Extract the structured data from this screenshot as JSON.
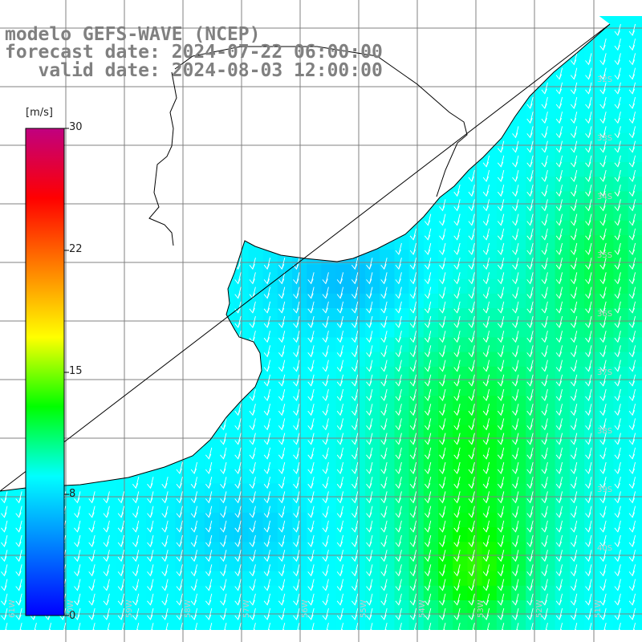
{
  "title": {
    "line1": "modelo GEFS-WAVE (NCEP)",
    "line2": "forecast date: 2024-07-22 06:00:00",
    "line3": "   valid date: 2024-08-03 12:00:00"
  },
  "legend": {
    "unit": "[m/s]",
    "min": 0,
    "max": 30,
    "ticks": [
      "30",
      "22",
      "15",
      "8",
      "0"
    ],
    "colors": [
      "#0000ff",
      "#0080ff",
      "#00ffff",
      "#00ff00",
      "#ffff00",
      "#ff8000",
      "#ff0000",
      "#c00080"
    ]
  },
  "map": {
    "variable": "wind speed",
    "bottom_labels": [
      "61W",
      "60W",
      "59W",
      "58W",
      "57W",
      "56W",
      "55W",
      "54W",
      "53W",
      "52W",
      "51W"
    ],
    "right_labels": [
      "32S",
      "33S",
      "34S",
      "35S",
      "36S",
      "37S",
      "38S",
      "39S",
      "40S"
    ],
    "colors": {
      "land": "#ffffff",
      "coast": "#000000",
      "grid": "#808080",
      "arrow": "#ffffff"
    }
  }
}
